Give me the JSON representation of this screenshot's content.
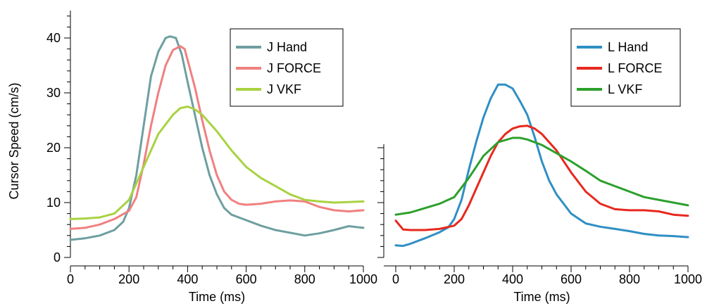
{
  "chart_data": [
    {
      "type": "line",
      "ylabel": "Cursor Speed (cm/s)",
      "xlabel": "Time (ms)",
      "xlim": [
        0,
        1000
      ],
      "ylim": [
        0,
        45
      ],
      "xticks": [
        0,
        200,
        400,
        600,
        800,
        1000
      ],
      "yticks": [
        0,
        10,
        20,
        30,
        40
      ],
      "legend_position": "top-right",
      "series": [
        {
          "name": "J Hand",
          "color": "#6e9fa0",
          "x": [
            0,
            50,
            100,
            150,
            180,
            200,
            225,
            250,
            275,
            300,
            325,
            340,
            360,
            380,
            400,
            425,
            450,
            475,
            500,
            525,
            550,
            600,
            650,
            700,
            750,
            800,
            850,
            900,
            950,
            1000
          ],
          "y": [
            3.2,
            3.5,
            4.0,
            5.0,
            6.5,
            9.0,
            15.0,
            24.0,
            33.0,
            37.5,
            40.0,
            40.3,
            40.0,
            37.0,
            32.0,
            26.0,
            20.0,
            15.0,
            11.5,
            9.0,
            7.8,
            6.8,
            5.8,
            5.0,
            4.5,
            4.0,
            4.4,
            5.0,
            5.7,
            5.4
          ]
        },
        {
          "name": "J FORCE",
          "color": "#f08080",
          "x": [
            0,
            50,
            100,
            150,
            200,
            225,
            250,
            275,
            300,
            325,
            350,
            375,
            390,
            400,
            425,
            450,
            475,
            500,
            525,
            550,
            575,
            600,
            650,
            700,
            750,
            800,
            850,
            900,
            950,
            1000
          ],
          "y": [
            5.2,
            5.4,
            6.0,
            7.0,
            8.5,
            11.0,
            17.0,
            24.0,
            30.0,
            35.0,
            37.8,
            38.5,
            38.0,
            36.0,
            31.0,
            25.0,
            19.5,
            15.0,
            12.0,
            10.5,
            9.8,
            9.6,
            9.8,
            10.2,
            10.4,
            10.2,
            9.2,
            8.6,
            8.4,
            8.6
          ]
        },
        {
          "name": "J VKF",
          "color": "#a9d241",
          "x": [
            0,
            50,
            100,
            150,
            200,
            250,
            300,
            350,
            375,
            400,
            425,
            450,
            500,
            550,
            600,
            650,
            700,
            750,
            800,
            850,
            900,
            950,
            1000
          ],
          "y": [
            7.0,
            7.1,
            7.3,
            8.0,
            10.5,
            16.5,
            22.5,
            26.0,
            27.2,
            27.5,
            27.0,
            26.0,
            23.0,
            19.5,
            16.5,
            14.5,
            13.0,
            11.5,
            10.5,
            10.2,
            10.0,
            10.1,
            10.2
          ]
        }
      ]
    },
    {
      "type": "line",
      "ylabel": "",
      "xlabel": "Time (ms)",
      "xlim": [
        0,
        1000
      ],
      "ylim": [
        0,
        45
      ],
      "xticks": [
        0,
        200,
        400,
        600,
        800,
        1000
      ],
      "legend_position": "top-right",
      "series": [
        {
          "name": "L Hand",
          "color": "#2f8fc4",
          "x": [
            0,
            25,
            50,
            100,
            150,
            180,
            200,
            225,
            250,
            275,
            300,
            325,
            350,
            375,
            400,
            425,
            450,
            475,
            500,
            525,
            550,
            600,
            650,
            700,
            750,
            800,
            850,
            900,
            950,
            1000
          ],
          "y": [
            2.2,
            2.1,
            2.5,
            3.5,
            4.6,
            5.5,
            7.0,
            10.5,
            16.0,
            21.0,
            25.5,
            29.0,
            31.5,
            31.5,
            30.8,
            28.5,
            26.0,
            22.0,
            17.5,
            14.0,
            11.5,
            8.0,
            6.2,
            5.6,
            5.2,
            4.8,
            4.3,
            4.0,
            3.9,
            3.7
          ]
        },
        {
          "name": "L FORCE",
          "color": "#e8281e",
          "x": [
            0,
            25,
            50,
            100,
            150,
            200,
            225,
            250,
            275,
            300,
            325,
            350,
            375,
            400,
            425,
            450,
            475,
            500,
            550,
            600,
            650,
            700,
            750,
            800,
            850,
            900,
            950,
            1000
          ],
          "y": [
            6.7,
            5.1,
            5.0,
            5.0,
            5.2,
            5.8,
            7.0,
            9.5,
            12.5,
            15.5,
            18.5,
            21.0,
            22.5,
            23.5,
            23.9,
            24.0,
            23.5,
            22.5,
            19.5,
            15.5,
            12.0,
            9.8,
            8.8,
            8.6,
            8.6,
            8.4,
            7.8,
            7.6
          ]
        },
        {
          "name": "L VKF",
          "color": "#2ca02c",
          "x": [
            0,
            50,
            100,
            150,
            200,
            250,
            300,
            350,
            400,
            425,
            450,
            500,
            550,
            600,
            650,
            700,
            750,
            800,
            850,
            900,
            950,
            1000
          ],
          "y": [
            7.8,
            8.2,
            9.0,
            9.8,
            11.0,
            14.5,
            18.5,
            21.0,
            21.8,
            21.8,
            21.5,
            20.5,
            19.0,
            17.5,
            15.8,
            14.0,
            13.0,
            12.0,
            11.0,
            10.5,
            10.0,
            9.5
          ]
        }
      ]
    }
  ]
}
